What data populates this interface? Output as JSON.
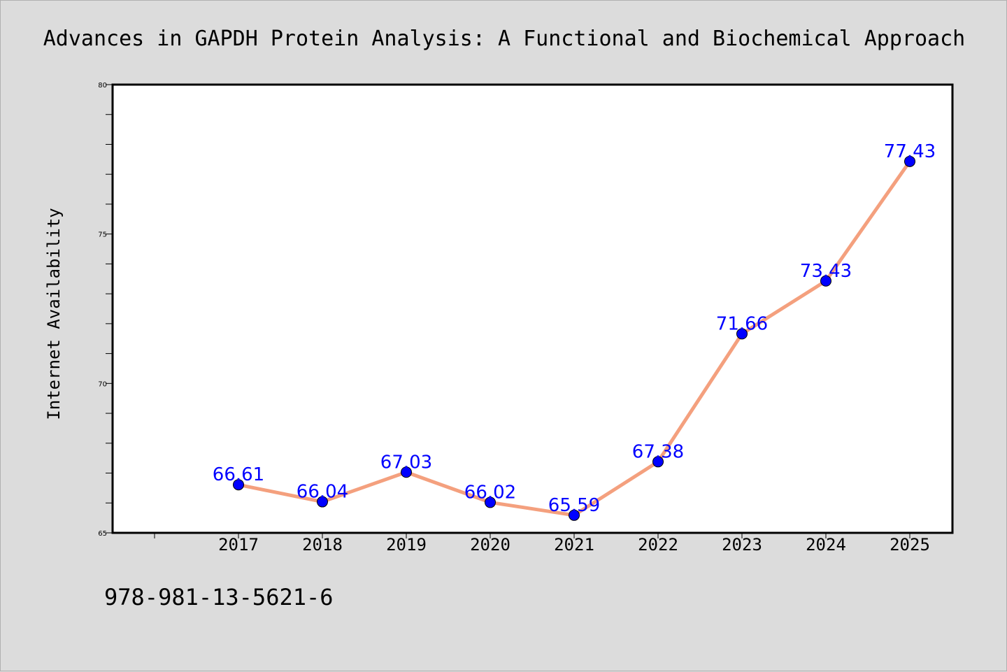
{
  "chart_data": {
    "type": "line",
    "title": "Advances in GAPDH Protein Analysis: A Functional and Biochemical Approach",
    "xlabel": "",
    "ylabel": "Internet Availability",
    "categories": [
      "2017",
      "2018",
      "2019",
      "2020",
      "2021",
      "2022",
      "2023",
      "2024",
      "2025"
    ],
    "series": [
      {
        "values": [
          66.61,
          66.04,
          67.03,
          66.02,
          65.59,
          67.38,
          71.66,
          73.43,
          77.43
        ],
        "data_labels": [
          "66.61",
          "66.04",
          "67.03",
          "66.02",
          "65.59",
          "67.38",
          "71.66",
          "73.43",
          "77.43"
        ],
        "line_color": "#f4a07e",
        "marker_color": "#0000ff"
      }
    ],
    "ylim": [
      65,
      80
    ],
    "yticks": [
      65,
      70,
      75,
      80
    ],
    "grid": false,
    "legend": "none"
  },
  "footer": {
    "isbn": "978-981-13-5621-6"
  },
  "colors": {
    "background": "#dcdcdc",
    "plot_background": "#ffffff",
    "line": "#f4a07e",
    "marker": "#0000ff",
    "data_label": "#0000ff"
  }
}
